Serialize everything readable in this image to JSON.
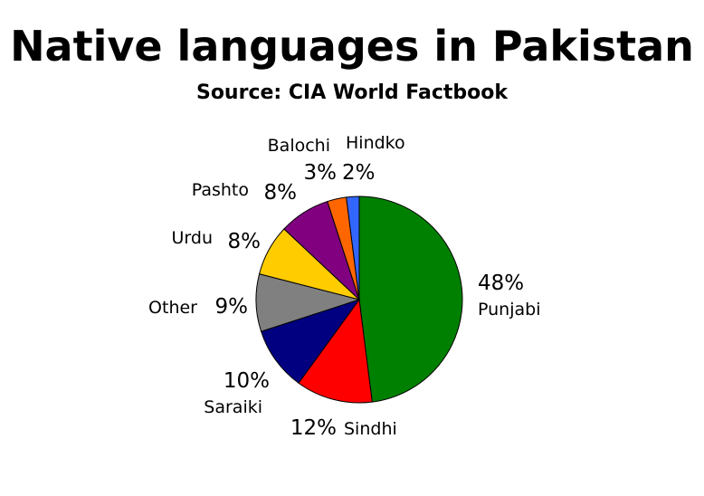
{
  "chart_data": {
    "type": "pie",
    "title": "Native languages in Pakistan",
    "subtitle": "Source: CIA World Factbook",
    "slices": [
      {
        "label": "Punjabi",
        "value": 48,
        "value_label": "48%",
        "color": "#008000"
      },
      {
        "label": "Sindhi",
        "value": 12,
        "value_label": "12%",
        "color": "#ff0000"
      },
      {
        "label": "Saraiki",
        "value": 10,
        "value_label": "10%",
        "color": "#000080"
      },
      {
        "label": "Other",
        "value": 9,
        "value_label": "9%",
        "color": "#808080"
      },
      {
        "label": "Urdu",
        "value": 8,
        "value_label": "8%",
        "color": "#ffcc00"
      },
      {
        "label": "Pashto",
        "value": 8,
        "value_label": "8%",
        "color": "#800080"
      },
      {
        "label": "Balochi",
        "value": 3,
        "value_label": "3%",
        "color": "#ff6600"
      },
      {
        "label": "Hindko",
        "value": 2,
        "value_label": "2%",
        "color": "#3366ff"
      }
    ]
  }
}
